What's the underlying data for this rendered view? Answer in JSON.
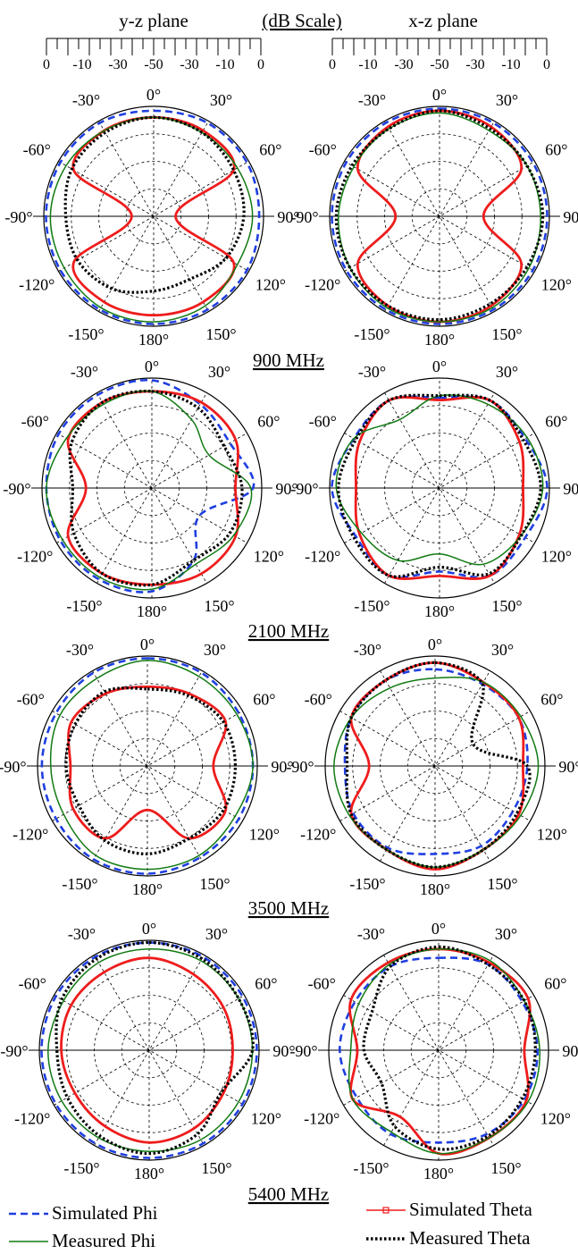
{
  "header": {
    "left_plane": "y-z plane",
    "right_plane": "x-z plane",
    "scale_label": "(dB Scale)",
    "scale_ticks": [
      "0",
      "-10",
      "-30",
      "-50",
      "-30",
      "-10",
      "0"
    ]
  },
  "angle_labels": [
    "0°",
    "30°",
    "60°",
    "90°",
    "120°",
    "150°",
    "180°",
    "-150°",
    "-120°",
    "-90°",
    "-60°",
    "-30°"
  ],
  "frequency_labels": [
    "900 MHz",
    "2100 MHz",
    "3500 MHz",
    "5400 MHz"
  ],
  "legend": [
    {
      "label": "Simulated Phi",
      "color": "#1f3fe0",
      "style": "dashed"
    },
    {
      "label": "Simulated Theta",
      "color": "#ee1c1c",
      "style": "marker-line"
    },
    {
      "label": "Measured Phi",
      "color": "#117a11",
      "style": "solid"
    },
    {
      "label": "Measured Theta",
      "color": "#000000",
      "style": "dotted"
    }
  ],
  "chart_data": [
    {
      "type": "polar",
      "plane": "y-z",
      "frequency": "900 MHz",
      "rlim": [
        -50,
        0
      ],
      "angle_step_deg": 30,
      "angles_deg": [
        0,
        30,
        60,
        90,
        120,
        150,
        180,
        210,
        240,
        270,
        300,
        330
      ],
      "series": [
        {
          "name": "Simulated Phi",
          "values": [
            -2,
            -1,
            -1,
            -2,
            -1,
            -1,
            -1,
            -1,
            -1,
            -1,
            -1,
            -1
          ]
        },
        {
          "name": "Simulated Theta",
          "values": [
            -5,
            -5,
            -8,
            -40,
            -8,
            -5,
            -5,
            -5,
            -8,
            -40,
            -8,
            -5
          ]
        },
        {
          "name": "Measured Phi",
          "values": [
            -5,
            -6,
            -6,
            -5,
            -6,
            -3,
            -2,
            -2,
            -3,
            -3,
            -4,
            -5
          ]
        },
        {
          "name": "Measured Theta",
          "values": [
            -5,
            -6,
            -8,
            -9,
            -12,
            -17,
            -16,
            -12,
            -10,
            -10,
            -7,
            -6
          ]
        }
      ]
    },
    {
      "type": "polar",
      "plane": "x-z",
      "frequency": "900 MHz",
      "rlim": [
        -50,
        0
      ],
      "angle_step_deg": 30,
      "angles_deg": [
        0,
        30,
        60,
        90,
        120,
        150,
        180,
        210,
        240,
        270,
        300,
        330
      ],
      "series": [
        {
          "name": "Simulated Phi",
          "values": [
            -1,
            -1,
            -1,
            -1,
            -1,
            -1,
            -1,
            -1,
            -1,
            -1,
            -1,
            -1
          ]
        },
        {
          "name": "Simulated Theta",
          "values": [
            -2,
            -3,
            -7,
            -30,
            -7,
            -3,
            -2,
            -3,
            -7,
            -30,
            -7,
            -3
          ]
        },
        {
          "name": "Measured Phi",
          "values": [
            -3,
            -5,
            -4,
            -4,
            -3,
            -2,
            -2,
            -2,
            -3,
            -4,
            -5,
            -4
          ]
        },
        {
          "name": "Measured Theta",
          "values": [
            -2,
            -4,
            -4,
            -3,
            -4,
            -4,
            -3,
            -3,
            -3,
            -3,
            -4,
            -4
          ]
        }
      ]
    },
    {
      "type": "polar",
      "plane": "y-z",
      "frequency": "2100 MHz",
      "rlim": [
        -50,
        0
      ],
      "angle_step_deg": 30,
      "angles_deg": [
        0,
        30,
        60,
        90,
        120,
        150,
        180,
        210,
        240,
        270,
        300,
        330
      ],
      "series": [
        {
          "name": "Simulated Phi",
          "values": [
            -1,
            -6,
            -9,
            -4,
            -25,
            -12,
            -3,
            -2,
            -2,
            -2,
            -1,
            -1
          ]
        },
        {
          "name": "Simulated Theta",
          "values": [
            -6,
            -5,
            -6,
            -12,
            -6,
            -5,
            -6,
            -5,
            -6,
            -20,
            -6,
            -5
          ]
        },
        {
          "name": "Measured Phi",
          "values": [
            -6,
            -14,
            -20,
            -5,
            -7,
            -10,
            -4,
            -3,
            -3,
            -2,
            -5,
            -6
          ]
        },
        {
          "name": "Measured Theta",
          "values": [
            -6,
            -8,
            -12,
            -9,
            -9,
            -12,
            -6,
            -5,
            -9,
            -14,
            -8,
            -5
          ]
        }
      ]
    },
    {
      "type": "polar",
      "plane": "x-z",
      "frequency": "2100 MHz",
      "rlim": [
        -50,
        0
      ],
      "angle_step_deg": 30,
      "angles_deg": [
        0,
        30,
        60,
        90,
        120,
        150,
        180,
        210,
        240,
        270,
        300,
        330
      ],
      "series": [
        {
          "name": "Simulated Phi",
          "values": [
            -9,
            -4,
            -5,
            -1,
            -5,
            -4,
            -12,
            -4,
            -6,
            -1,
            -5,
            -4
          ]
        },
        {
          "name": "Simulated Theta",
          "values": [
            -10,
            -4,
            -8,
            -12,
            -8,
            -4,
            -10,
            -4,
            -8,
            -12,
            -8,
            -4
          ]
        },
        {
          "name": "Measured Phi",
          "values": [
            -8,
            -6,
            -4,
            -3,
            -7,
            -10,
            -20,
            -12,
            -9,
            -3,
            -5,
            -14
          ]
        },
        {
          "name": "Measured Theta",
          "values": [
            -8,
            -4,
            -6,
            -4,
            -7,
            -5,
            -14,
            -4,
            -5,
            -4,
            -6,
            -4
          ]
        }
      ]
    },
    {
      "type": "polar",
      "plane": "y-z",
      "frequency": "3500 MHz",
      "rlim": [
        -50,
        0
      ],
      "angle_step_deg": 30,
      "angles_deg": [
        0,
        30,
        60,
        90,
        120,
        150,
        180,
        210,
        240,
        270,
        300,
        330
      ],
      "series": [
        {
          "name": "Simulated Phi",
          "values": [
            -1,
            -1,
            -2,
            -2,
            -2,
            -2,
            -1,
            -1,
            -2,
            -2,
            -2,
            -1
          ]
        },
        {
          "name": "Simulated Theta",
          "values": [
            -14,
            -12,
            -9,
            -20,
            -9,
            -12,
            -30,
            -12,
            -11,
            -15,
            -10,
            -12
          ]
        },
        {
          "name": "Measured Phi",
          "values": [
            -2,
            -3,
            -3,
            -2,
            -4,
            -3,
            -3,
            -3,
            -6,
            -6,
            -4,
            -4
          ]
        },
        {
          "name": "Measured Theta",
          "values": [
            -15,
            -13,
            -10,
            -10,
            -10,
            -12,
            -10,
            -11,
            -14,
            -13,
            -12,
            -11
          ]
        }
      ]
    },
    {
      "type": "polar",
      "plane": "x-z",
      "frequency": "3500 MHz",
      "rlim": [
        -50,
        0
      ],
      "angle_step_deg": 30,
      "angles_deg": [
        0,
        30,
        60,
        90,
        120,
        150,
        180,
        210,
        240,
        270,
        300,
        330
      ],
      "series": [
        {
          "name": "Simulated Phi",
          "values": [
            -6,
            -7,
            -6,
            -8,
            -9,
            -8,
            -10,
            -7,
            -7,
            -9,
            -6,
            -5
          ]
        },
        {
          "name": "Simulated Theta",
          "values": [
            -3,
            -6,
            -6,
            -10,
            -6,
            -6,
            -3,
            -6,
            -6,
            -20,
            -6,
            -5
          ]
        },
        {
          "name": "Measured Phi",
          "values": [
            -10,
            -6,
            -5,
            -3,
            -5,
            -6,
            -4,
            -6,
            -5,
            -4,
            -6,
            -9
          ]
        },
        {
          "name": "Measured Theta",
          "values": [
            -3,
            -7,
            -30,
            -8,
            -7,
            -6,
            -4,
            -6,
            -6,
            -10,
            -6,
            -5
          ]
        }
      ]
    },
    {
      "type": "polar",
      "plane": "y-z",
      "frequency": "5400 MHz",
      "rlim": [
        -50,
        0
      ],
      "angle_step_deg": 30,
      "angles_deg": [
        0,
        30,
        60,
        90,
        120,
        150,
        180,
        210,
        240,
        270,
        300,
        330
      ],
      "series": [
        {
          "name": "Simulated Phi",
          "values": [
            -1,
            -1,
            -1,
            -1,
            -1,
            -1,
            -1,
            -1,
            -1,
            -1,
            -1,
            -1
          ]
        },
        {
          "name": "Simulated Theta",
          "values": [
            -8,
            -10,
            -11,
            -12,
            -11,
            -9,
            -8,
            -10,
            -11,
            -10,
            -9,
            -9
          ]
        },
        {
          "name": "Measured Phi",
          "values": [
            -4,
            -3,
            -3,
            -3,
            -3,
            -3,
            -4,
            -4,
            -4,
            -4,
            -5,
            -4
          ]
        },
        {
          "name": "Measured Theta",
          "values": [
            -1,
            -2,
            -3,
            -3,
            -12,
            -6,
            -3,
            -5,
            -7,
            -8,
            -4,
            -2
          ]
        }
      ]
    },
    {
      "type": "polar",
      "plane": "x-z",
      "frequency": "5400 MHz",
      "rlim": [
        -50,
        0
      ],
      "angle_step_deg": 30,
      "angles_deg": [
        0,
        30,
        60,
        90,
        120,
        150,
        180,
        210,
        240,
        270,
        300,
        330
      ],
      "series": [
        {
          "name": "Simulated Phi",
          "values": [
            -8,
            -5,
            -6,
            -5,
            -5,
            -6,
            -8,
            -6,
            -7,
            -5,
            -6,
            -6
          ]
        },
        {
          "name": "Simulated Theta",
          "values": [
            -4,
            -4,
            -3,
            -11,
            -4,
            -4,
            -3,
            -15,
            -5,
            -13,
            -4,
            -4
          ]
        },
        {
          "name": "Measured Phi",
          "values": [
            -4,
            -3,
            -5,
            -4,
            -3,
            -4,
            -3,
            -7,
            -5,
            -10,
            -8,
            -5
          ]
        },
        {
          "name": "Measured Theta",
          "values": [
            -3,
            -5,
            -5,
            -6,
            -6,
            -5,
            -5,
            -10,
            -20,
            -16,
            -15,
            -6
          ]
        }
      ]
    }
  ]
}
